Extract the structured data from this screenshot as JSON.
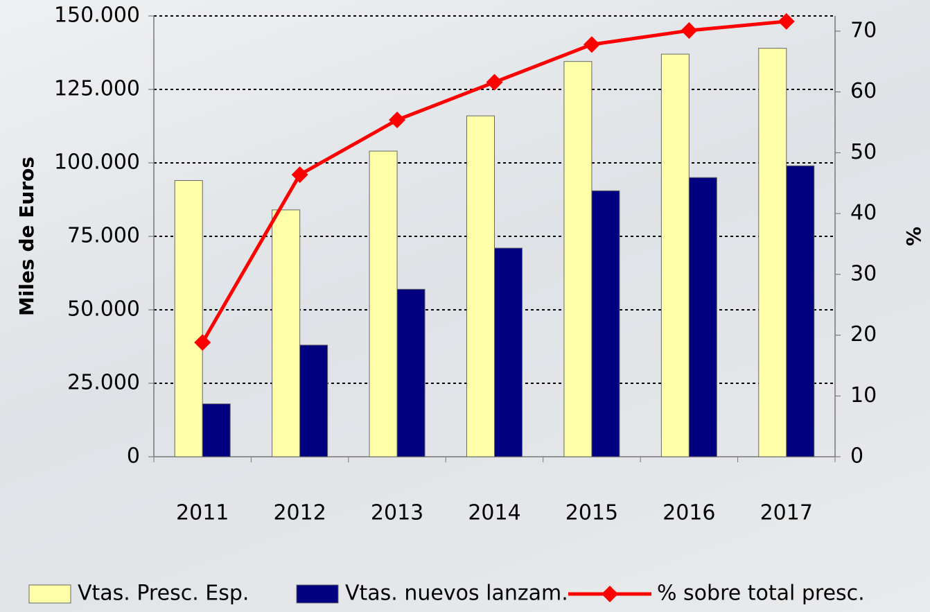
{
  "chart_data": {
    "type": "bar-line",
    "y_label": "Miles de Euros",
    "y2_label": "%",
    "categories": [
      "2011",
      "2012",
      "2013",
      "2014",
      "2015",
      "2016",
      "2017"
    ],
    "series": [
      {
        "name": "Vtas. Presc. Esp.",
        "color": "#ffffa8",
        "type": "bar",
        "values": [
          94000,
          84000,
          104000,
          116000,
          134500,
          137000,
          139000
        ]
      },
      {
        "name": "Vtas. nuevos lanzam.",
        "color": "#000080",
        "type": "bar",
        "values": [
          18000,
          38000,
          57000,
          71000,
          90500,
          95000,
          99000
        ]
      },
      {
        "name": "% sobre total presc.",
        "color": "#ff0000",
        "type": "line",
        "axis": "y2",
        "values": [
          18.8,
          46.4,
          55.4,
          61.6,
          67.8,
          70.1,
          71.6
        ]
      }
    ],
    "ylim": [
      0,
      150000
    ],
    "yticks": [
      0,
      {
        "value": 25000,
        "label": "25.000"
      },
      {
        "value": 50000,
        "label": "50.000"
      },
      {
        "value": 75000,
        "label": "75.000"
      },
      {
        "value": 100000,
        "label": "100.000"
      },
      {
        "value": 125000,
        "label": "125.000"
      },
      {
        "value": 150000,
        "label": "150.000"
      }
    ],
    "y2lim": [
      0,
      72.5
    ],
    "y2ticks": [
      0,
      10,
      20,
      30,
      40,
      50,
      60,
      70
    ],
    "grid": true,
    "legend": "bottom"
  }
}
